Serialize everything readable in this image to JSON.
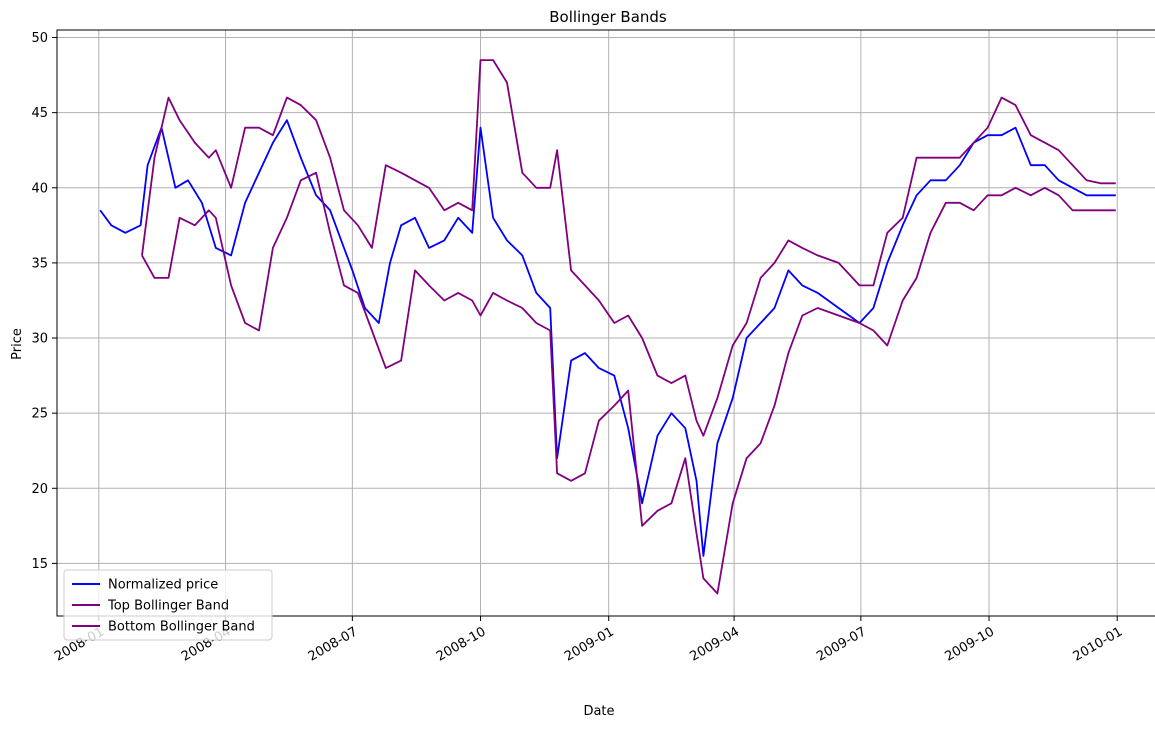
{
  "chart_data": {
    "type": "line",
    "title": "Bollinger Bands",
    "xlabel": "Date",
    "ylabel": "Price",
    "x_ticks": [
      "2008-01",
      "2008-04",
      "2008-07",
      "2008-10",
      "2009-01",
      "2009-04",
      "2009-07",
      "2009-10",
      "2010-01"
    ],
    "y_ticks": [
      15,
      20,
      25,
      30,
      35,
      40,
      45,
      50
    ],
    "xlim": [
      "2007-12-02",
      "2010-01-31"
    ],
    "ylim": [
      11.5,
      50.5
    ],
    "grid": true,
    "legend_position": "lower-left",
    "colors": {
      "price": "#0000ff",
      "band": "#800080"
    },
    "series": [
      {
        "name": "Normalized price",
        "color": "#0000ff",
        "points": [
          [
            "2008-01-02",
            38.5
          ],
          [
            "2008-01-10",
            37.5
          ],
          [
            "2008-01-20",
            37.0
          ],
          [
            "2008-01-31",
            37.5
          ],
          [
            "2008-02-05",
            41.5
          ],
          [
            "2008-02-15",
            44.0
          ],
          [
            "2008-02-25",
            40.0
          ],
          [
            "2008-03-05",
            40.5
          ],
          [
            "2008-03-15",
            39.0
          ],
          [
            "2008-03-25",
            36.0
          ],
          [
            "2008-04-05",
            35.5
          ],
          [
            "2008-04-15",
            39.0
          ],
          [
            "2008-04-25",
            41.0
          ],
          [
            "2008-05-05",
            43.0
          ],
          [
            "2008-05-15",
            44.5
          ],
          [
            "2008-05-25",
            42.0
          ],
          [
            "2008-06-05",
            39.5
          ],
          [
            "2008-06-15",
            38.5
          ],
          [
            "2008-06-25",
            36.0
          ],
          [
            "2008-07-01",
            34.5
          ],
          [
            "2008-07-10",
            32.0
          ],
          [
            "2008-07-20",
            31.0
          ],
          [
            "2008-07-28",
            35.0
          ],
          [
            "2008-08-05",
            37.5
          ],
          [
            "2008-08-15",
            38.0
          ],
          [
            "2008-08-25",
            36.0
          ],
          [
            "2008-09-05",
            36.5
          ],
          [
            "2008-09-15",
            38.0
          ],
          [
            "2008-09-25",
            37.0
          ],
          [
            "2008-10-01",
            44.0
          ],
          [
            "2008-10-10",
            38.0
          ],
          [
            "2008-10-20",
            36.5
          ],
          [
            "2008-10-31",
            35.5
          ],
          [
            "2008-11-10",
            33.0
          ],
          [
            "2008-11-20",
            32.0
          ],
          [
            "2008-11-25",
            22.0
          ],
          [
            "2008-12-05",
            28.5
          ],
          [
            "2008-12-15",
            29.0
          ],
          [
            "2008-12-25",
            28.0
          ],
          [
            "2009-01-05",
            27.5
          ],
          [
            "2009-01-15",
            24.0
          ],
          [
            "2009-01-25",
            19.0
          ],
          [
            "2009-02-05",
            23.5
          ],
          [
            "2009-02-15",
            25.0
          ],
          [
            "2009-02-25",
            24.0
          ],
          [
            "2009-03-05",
            20.5
          ],
          [
            "2009-03-10",
            15.5
          ],
          [
            "2009-03-20",
            23.0
          ],
          [
            "2009-03-31",
            26.0
          ],
          [
            "2009-04-10",
            30.0
          ],
          [
            "2009-04-20",
            31.0
          ],
          [
            "2009-04-30",
            32.0
          ],
          [
            "2009-05-10",
            34.5
          ],
          [
            "2009-05-20",
            33.5
          ],
          [
            "2009-05-31",
            33.0
          ],
          [
            "2009-06-15",
            32.0
          ],
          [
            "2009-06-30",
            31.0
          ],
          [
            "2009-07-10",
            32.0
          ],
          [
            "2009-07-20",
            35.0
          ],
          [
            "2009-07-31",
            37.5
          ],
          [
            "2009-08-10",
            39.5
          ],
          [
            "2009-08-20",
            40.5
          ],
          [
            "2009-08-31",
            40.5
          ],
          [
            "2009-09-10",
            41.5
          ],
          [
            "2009-09-20",
            43.0
          ],
          [
            "2009-09-30",
            43.5
          ],
          [
            "2009-10-10",
            43.5
          ],
          [
            "2009-10-20",
            44.0
          ],
          [
            "2009-10-31",
            41.5
          ],
          [
            "2009-11-10",
            41.5
          ],
          [
            "2009-11-20",
            40.5
          ],
          [
            "2009-11-30",
            40.0
          ],
          [
            "2009-12-10",
            39.5
          ],
          [
            "2009-12-20",
            39.5
          ],
          [
            "2009-12-31",
            39.5
          ]
        ]
      },
      {
        "name": "Top Bollinger Band",
        "color": "#800080",
        "points": [
          [
            "2008-02-01",
            35.5
          ],
          [
            "2008-02-10",
            42.0
          ],
          [
            "2008-02-20",
            46.0
          ],
          [
            "2008-02-28",
            44.5
          ],
          [
            "2008-03-10",
            43.0
          ],
          [
            "2008-03-20",
            42.0
          ],
          [
            "2008-03-25",
            42.5
          ],
          [
            "2008-04-05",
            40.0
          ],
          [
            "2008-04-15",
            44.0
          ],
          [
            "2008-04-25",
            44.0
          ],
          [
            "2008-05-05",
            43.5
          ],
          [
            "2008-05-15",
            46.0
          ],
          [
            "2008-05-25",
            45.5
          ],
          [
            "2008-06-05",
            44.5
          ],
          [
            "2008-06-15",
            42.0
          ],
          [
            "2008-06-25",
            38.5
          ],
          [
            "2008-07-05",
            37.5
          ],
          [
            "2008-07-15",
            36.0
          ],
          [
            "2008-07-25",
            41.5
          ],
          [
            "2008-08-05",
            41.0
          ],
          [
            "2008-08-15",
            40.5
          ],
          [
            "2008-08-25",
            40.0
          ],
          [
            "2008-09-05",
            38.5
          ],
          [
            "2008-09-15",
            39.0
          ],
          [
            "2008-09-25",
            38.5
          ],
          [
            "2008-10-01",
            48.5
          ],
          [
            "2008-10-10",
            48.5
          ],
          [
            "2008-10-20",
            47.0
          ],
          [
            "2008-10-31",
            41.0
          ],
          [
            "2008-11-10",
            40.0
          ],
          [
            "2008-11-20",
            40.0
          ],
          [
            "2008-11-25",
            42.5
          ],
          [
            "2008-12-05",
            34.5
          ],
          [
            "2008-12-15",
            33.5
          ],
          [
            "2008-12-25",
            32.5
          ],
          [
            "2009-01-05",
            31.0
          ],
          [
            "2009-01-15",
            31.5
          ],
          [
            "2009-01-25",
            30.0
          ],
          [
            "2009-02-05",
            27.5
          ],
          [
            "2009-02-15",
            27.0
          ],
          [
            "2009-02-25",
            27.5
          ],
          [
            "2009-03-05",
            24.5
          ],
          [
            "2009-03-10",
            23.5
          ],
          [
            "2009-03-20",
            26.0
          ],
          [
            "2009-03-31",
            29.5
          ],
          [
            "2009-04-10",
            31.0
          ],
          [
            "2009-04-20",
            34.0
          ],
          [
            "2009-04-30",
            35.0
          ],
          [
            "2009-05-10",
            36.5
          ],
          [
            "2009-05-20",
            36.0
          ],
          [
            "2009-05-31",
            35.5
          ],
          [
            "2009-06-15",
            35.0
          ],
          [
            "2009-06-30",
            33.5
          ],
          [
            "2009-07-10",
            33.5
          ],
          [
            "2009-07-20",
            37.0
          ],
          [
            "2009-07-31",
            38.0
          ],
          [
            "2009-08-10",
            42.0
          ],
          [
            "2009-08-20",
            42.0
          ],
          [
            "2009-08-31",
            42.0
          ],
          [
            "2009-09-10",
            42.0
          ],
          [
            "2009-09-20",
            43.0
          ],
          [
            "2009-09-30",
            44.0
          ],
          [
            "2009-10-10",
            46.0
          ],
          [
            "2009-10-20",
            45.5
          ],
          [
            "2009-10-31",
            43.5
          ],
          [
            "2009-11-10",
            43.0
          ],
          [
            "2009-11-20",
            42.5
          ],
          [
            "2009-11-30",
            41.5
          ],
          [
            "2009-12-10",
            40.5
          ],
          [
            "2009-12-20",
            40.3
          ],
          [
            "2009-12-31",
            40.3
          ]
        ]
      },
      {
        "name": "Bottom Bollinger Band",
        "color": "#800080",
        "points": [
          [
            "2008-02-01",
            35.5
          ],
          [
            "2008-02-10",
            34.0
          ],
          [
            "2008-02-20",
            34.0
          ],
          [
            "2008-02-28",
            38.0
          ],
          [
            "2008-03-10",
            37.5
          ],
          [
            "2008-03-20",
            38.5
          ],
          [
            "2008-03-25",
            38.0
          ],
          [
            "2008-04-05",
            33.5
          ],
          [
            "2008-04-15",
            31.0
          ],
          [
            "2008-04-25",
            30.5
          ],
          [
            "2008-05-05",
            36.0
          ],
          [
            "2008-05-15",
            38.0
          ],
          [
            "2008-05-25",
            40.5
          ],
          [
            "2008-06-05",
            41.0
          ],
          [
            "2008-06-15",
            37.0
          ],
          [
            "2008-06-25",
            33.5
          ],
          [
            "2008-07-05",
            33.0
          ],
          [
            "2008-07-15",
            30.5
          ],
          [
            "2008-07-25",
            28.0
          ],
          [
            "2008-08-05",
            28.5
          ],
          [
            "2008-08-15",
            34.5
          ],
          [
            "2008-08-25",
            33.5
          ],
          [
            "2008-09-05",
            32.5
          ],
          [
            "2008-09-15",
            33.0
          ],
          [
            "2008-09-25",
            32.5
          ],
          [
            "2008-10-01",
            31.5
          ],
          [
            "2008-10-10",
            33.0
          ],
          [
            "2008-10-20",
            32.5
          ],
          [
            "2008-10-31",
            32.0
          ],
          [
            "2008-11-10",
            31.0
          ],
          [
            "2008-11-20",
            30.5
          ],
          [
            "2008-11-25",
            21.0
          ],
          [
            "2008-12-05",
            20.5
          ],
          [
            "2008-12-15",
            21.0
          ],
          [
            "2008-12-25",
            24.5
          ],
          [
            "2009-01-05",
            25.5
          ],
          [
            "2009-01-15",
            26.5
          ],
          [
            "2009-01-25",
            17.5
          ],
          [
            "2009-02-05",
            18.5
          ],
          [
            "2009-02-15",
            19.0
          ],
          [
            "2009-02-25",
            22.0
          ],
          [
            "2009-03-05",
            17.0
          ],
          [
            "2009-03-10",
            14.0
          ],
          [
            "2009-03-20",
            13.0
          ],
          [
            "2009-03-31",
            19.0
          ],
          [
            "2009-04-10",
            22.0
          ],
          [
            "2009-04-20",
            23.0
          ],
          [
            "2009-04-30",
            25.5
          ],
          [
            "2009-05-10",
            29.0
          ],
          [
            "2009-05-20",
            31.5
          ],
          [
            "2009-05-31",
            32.0
          ],
          [
            "2009-06-15",
            31.5
          ],
          [
            "2009-06-30",
            31.0
          ],
          [
            "2009-07-10",
            30.5
          ],
          [
            "2009-07-20",
            29.5
          ],
          [
            "2009-07-31",
            32.5
          ],
          [
            "2009-08-10",
            34.0
          ],
          [
            "2009-08-20",
            37.0
          ],
          [
            "2009-08-31",
            39.0
          ],
          [
            "2009-09-10",
            39.0
          ],
          [
            "2009-09-20",
            38.5
          ],
          [
            "2009-09-30",
            39.5
          ],
          [
            "2009-10-10",
            39.5
          ],
          [
            "2009-10-20",
            40.0
          ],
          [
            "2009-10-31",
            39.5
          ],
          [
            "2009-11-10",
            40.0
          ],
          [
            "2009-11-20",
            39.5
          ],
          [
            "2009-11-30",
            38.5
          ],
          [
            "2009-12-10",
            38.5
          ],
          [
            "2009-12-20",
            38.5
          ],
          [
            "2009-12-31",
            38.5
          ]
        ]
      }
    ]
  }
}
